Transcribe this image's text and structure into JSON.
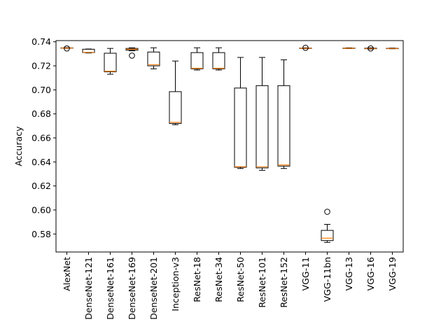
{
  "chart_data": {
    "type": "box",
    "title": "",
    "xlabel": "",
    "ylabel": "Accuracy",
    "ylim": [
      0.565,
      0.741
    ],
    "yticks": [
      0.58,
      0.6,
      0.62,
      0.64,
      0.66,
      0.68,
      0.7,
      0.72,
      0.74
    ],
    "ytick_labels": [
      "0.58",
      "0.60",
      "0.62",
      "0.64",
      "0.66",
      "0.68",
      "0.70",
      "0.72",
      "0.74"
    ],
    "categories": [
      "AlexNet",
      "DenseNet-121",
      "DenseNet-161",
      "DenseNet-169",
      "DenseNet-201",
      "Inception-v3",
      "ResNet-18",
      "ResNet-34",
      "ResNet-50",
      "ResNet-101",
      "ResNet-152",
      "VGG-11",
      "VGG-11bn",
      "VGG-13",
      "VGG-16",
      "VGG-19"
    ],
    "boxes": [
      {
        "label": "AlexNet",
        "whislo": 0.7345,
        "q1": 0.7347,
        "med": 0.7348,
        "q3": 0.735,
        "whishi": 0.7352,
        "fliers": [
          0.7345
        ]
      },
      {
        "label": "DenseNet-121",
        "whislo": 0.7307,
        "q1": 0.731,
        "med": 0.7312,
        "q3": 0.7338,
        "whishi": 0.734,
        "fliers": []
      },
      {
        "label": "DenseNet-161",
        "whislo": 0.713,
        "q1": 0.715,
        "med": 0.7155,
        "q3": 0.7305,
        "whishi": 0.7345,
        "fliers": []
      },
      {
        "label": "DenseNet-169",
        "whislo": 0.7325,
        "q1": 0.733,
        "med": 0.7338,
        "q3": 0.7345,
        "whishi": 0.735,
        "fliers": [
          0.7285
        ]
      },
      {
        "label": "DenseNet-201",
        "whislo": 0.7175,
        "q1": 0.72,
        "med": 0.721,
        "q3": 0.7315,
        "whishi": 0.735,
        "fliers": []
      },
      {
        "label": "Inception-v3",
        "whislo": 0.671,
        "q1": 0.672,
        "med": 0.673,
        "q3": 0.6985,
        "whishi": 0.724,
        "fliers": []
      },
      {
        "label": "ResNet-18",
        "whislo": 0.7165,
        "q1": 0.7175,
        "med": 0.718,
        "q3": 0.731,
        "whishi": 0.735,
        "fliers": []
      },
      {
        "label": "ResNet-34",
        "whislo": 0.7165,
        "q1": 0.7175,
        "med": 0.718,
        "q3": 0.731,
        "whishi": 0.735,
        "fliers": []
      },
      {
        "label": "ResNet-50",
        "whislo": 0.6345,
        "q1": 0.6355,
        "med": 0.636,
        "q3": 0.7015,
        "whishi": 0.727,
        "fliers": []
      },
      {
        "label": "ResNet-101",
        "whislo": 0.633,
        "q1": 0.635,
        "med": 0.636,
        "q3": 0.7035,
        "whishi": 0.727,
        "fliers": []
      },
      {
        "label": "ResNet-152",
        "whislo": 0.6345,
        "q1": 0.6365,
        "med": 0.6375,
        "q3": 0.7035,
        "whishi": 0.725,
        "fliers": []
      },
      {
        "label": "VGG-11",
        "whislo": 0.7344,
        "q1": 0.7345,
        "med": 0.7346,
        "q3": 0.7348,
        "whishi": 0.735,
        "fliers": [
          0.735
        ]
      },
      {
        "label": "VGG-11bn",
        "whislo": 0.573,
        "q1": 0.5745,
        "med": 0.5765,
        "q3": 0.583,
        "whishi": 0.588,
        "fliers": [
          0.5985
        ]
      },
      {
        "label": "VGG-13",
        "whislo": 0.7344,
        "q1": 0.7345,
        "med": 0.7346,
        "q3": 0.7348,
        "whishi": 0.735,
        "fliers": []
      },
      {
        "label": "VGG-16",
        "whislo": 0.734,
        "q1": 0.7342,
        "med": 0.7344,
        "q3": 0.7347,
        "whishi": 0.735,
        "fliers": [
          0.7345
        ]
      },
      {
        "label": "VGG-19",
        "whislo": 0.7342,
        "q1": 0.7343,
        "med": 0.7344,
        "q3": 0.7346,
        "whishi": 0.7348,
        "fliers": []
      }
    ],
    "grid": false,
    "colors": {
      "box": "#000000",
      "median": "#ff7f0e",
      "flier": "#000000",
      "background": "#ffffff"
    }
  }
}
